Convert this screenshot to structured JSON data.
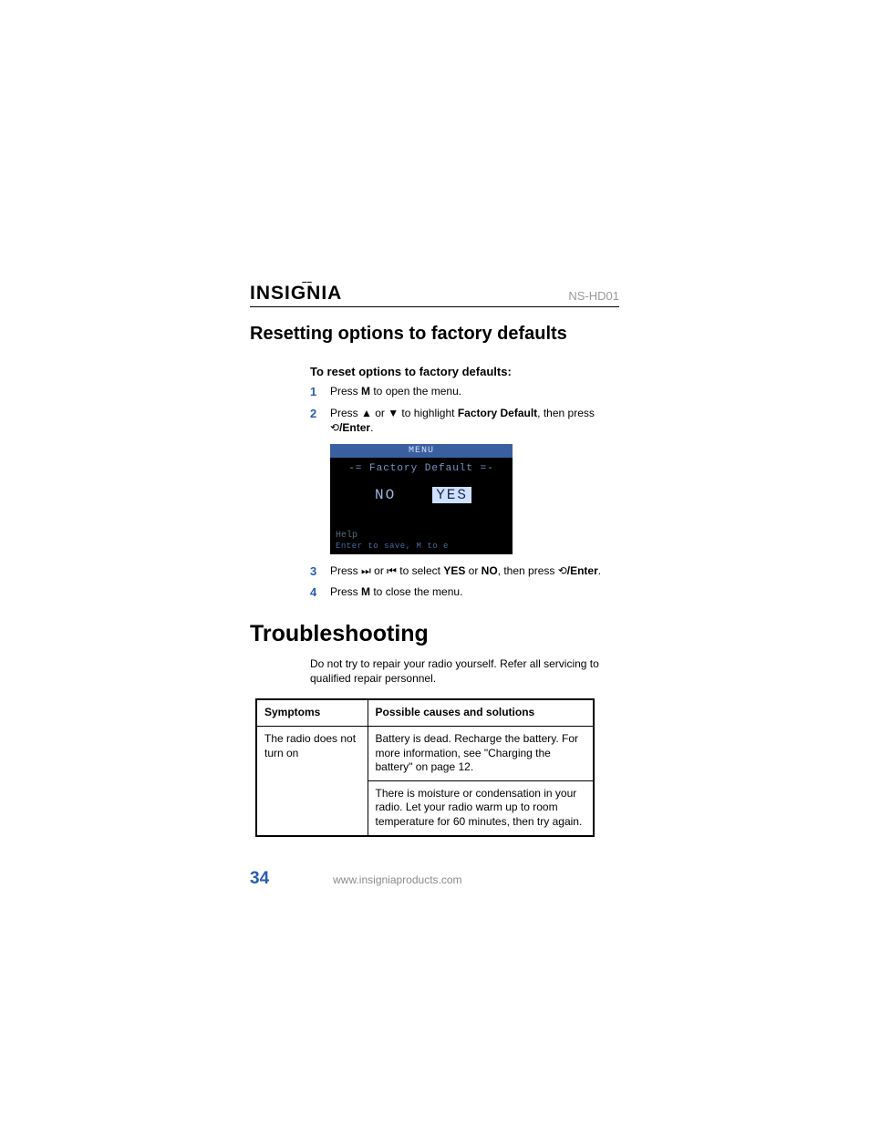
{
  "header": {
    "brand": "INSIGNIA",
    "brand_accent": "––",
    "model": "NS-HD01"
  },
  "section": {
    "heading": "Resetting options to factory defaults",
    "subheading": "To reset options to factory defaults:",
    "steps": [
      {
        "num": "1",
        "html": "Press <b>M</b> to open the menu."
      },
      {
        "num": "2",
        "html": "Press ▲ or ▼ to highlight <b>Factory Default</b>, then press ⟲<b>/Enter</b>."
      },
      {
        "num": "3",
        "html": "Press ⏭ or ⏮ to select <b>YES</b> or <b>NO</b>, then press ⟲<b>/Enter</b>."
      },
      {
        "num": "4",
        "html": "Press <b>M</b> to close the menu."
      }
    ]
  },
  "device_screen": {
    "title": "MENU",
    "subtitle": "-= Factory Default =-",
    "option_no": "NO",
    "option_yes": "YES",
    "selected": "yes",
    "help_label": "Help",
    "hint": "Enter to save, M to e",
    "colors": {
      "bg": "#000000",
      "title_bg": "#3a5fa0",
      "text_dim": "#7a97c8",
      "opt": "#9fb8e0",
      "sel_bg": "#cfe0ff",
      "sel_fg": "#1a2a50"
    }
  },
  "troubleshooting": {
    "heading": "Troubleshooting",
    "intro": "Do not try to repair your radio yourself. Refer all servicing to qualified repair personnel.",
    "table": {
      "columns": [
        "Symptoms",
        "Possible causes and solutions"
      ],
      "rows": [
        {
          "symptom": "The radio does not turn on",
          "causes": [
            "Battery is dead. Recharge the battery. For more information, see \"Charging the battery\" on page 12.",
            "There is moisture or condensation in your radio. Let your radio warm up to room temperature for 60 minutes, then try again."
          ]
        }
      ]
    }
  },
  "footer": {
    "page_number": "34",
    "url": "www.insigniaproducts.com"
  },
  "style": {
    "accent_color": "#2a5db0",
    "muted_color": "#9a9a9a",
    "body_font_size": 12,
    "heading_font_size": 20,
    "main_heading_font_size": 25
  }
}
